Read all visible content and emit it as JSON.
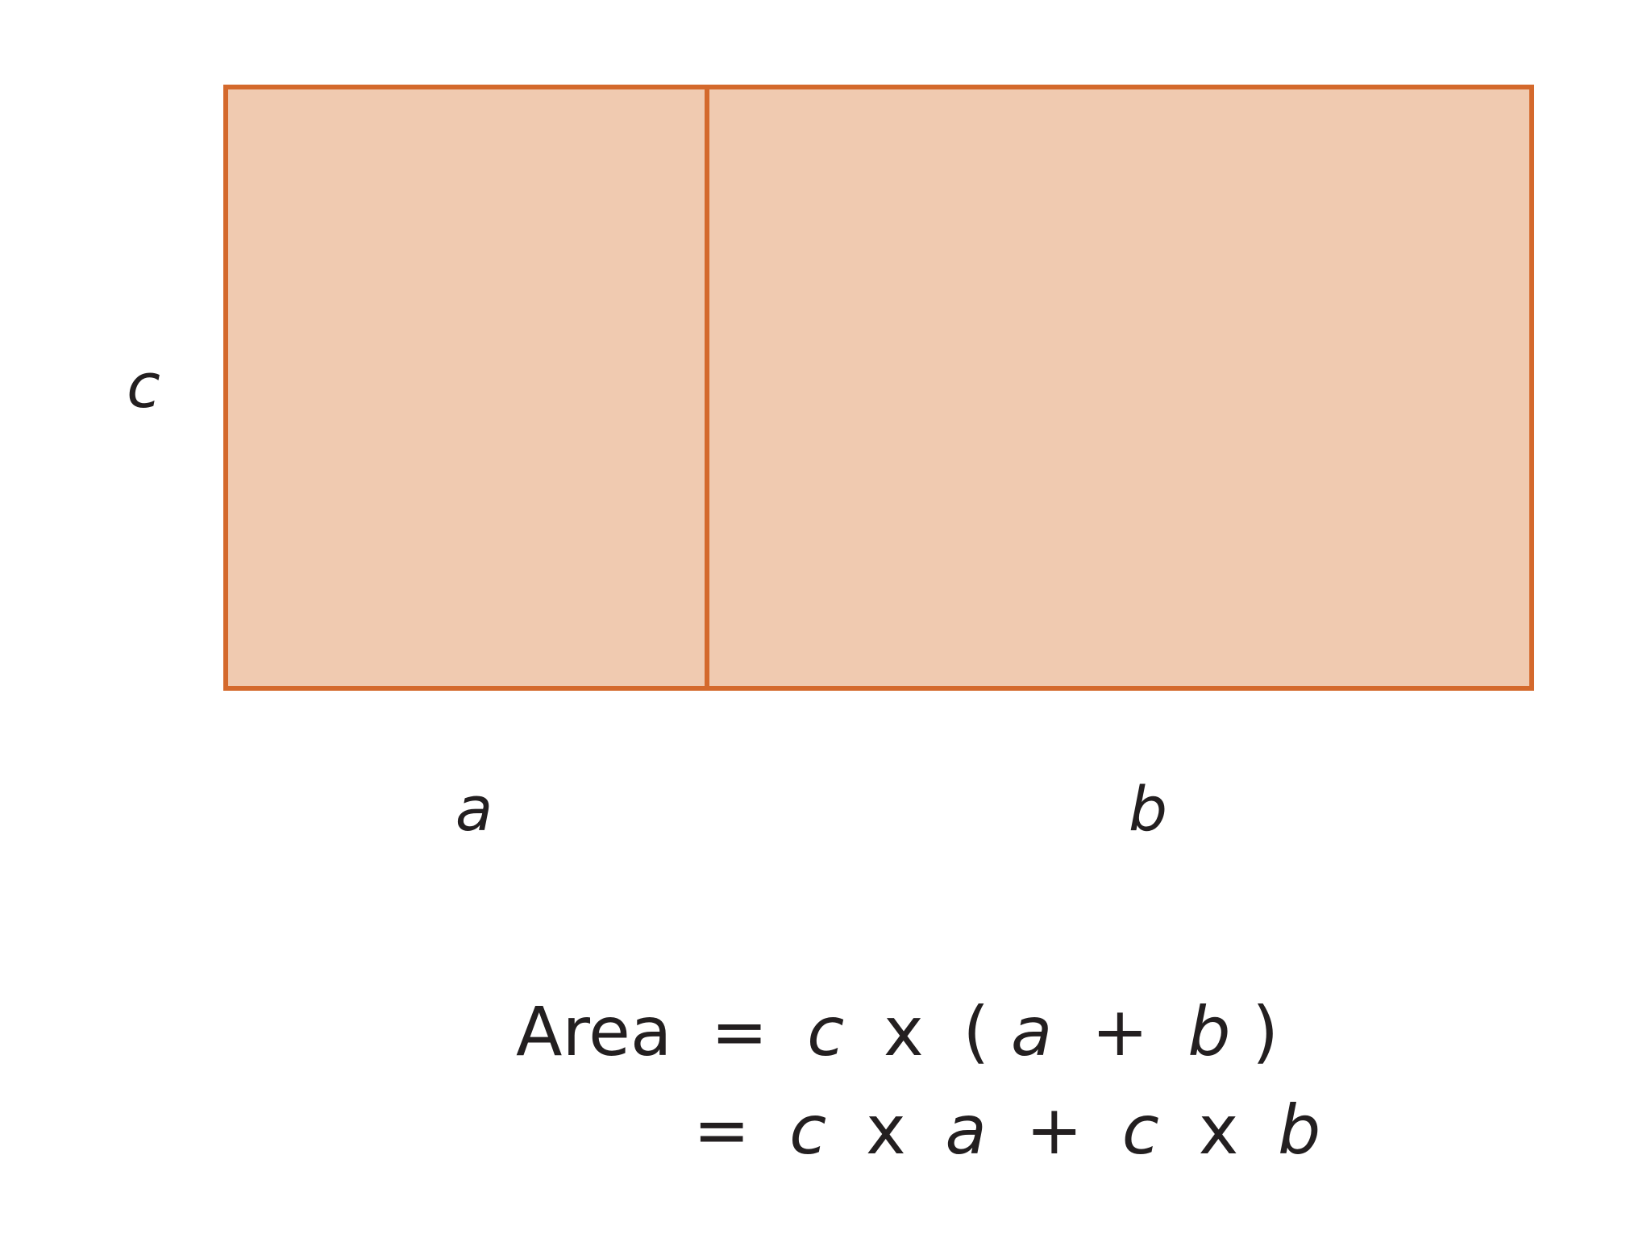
{
  "diagram": {
    "colors": {
      "fill": "#f0cab0",
      "stroke": "#d4692c",
      "text": "#231f20"
    },
    "labels": {
      "height": "c",
      "left_width": "a",
      "right_width": "b"
    }
  },
  "equation": {
    "line1": {
      "lhs": "Area",
      "eq": "=",
      "c": "c",
      "times": "x",
      "open_paren": "(",
      "a": "a",
      "plus": "+",
      "b": "b",
      "close_paren": ")"
    },
    "line2": {
      "eq": "=",
      "c1": "c",
      "times1": "x",
      "a": "a",
      "plus": "+",
      "c2": "c",
      "times2": "x",
      "b": "b"
    }
  }
}
